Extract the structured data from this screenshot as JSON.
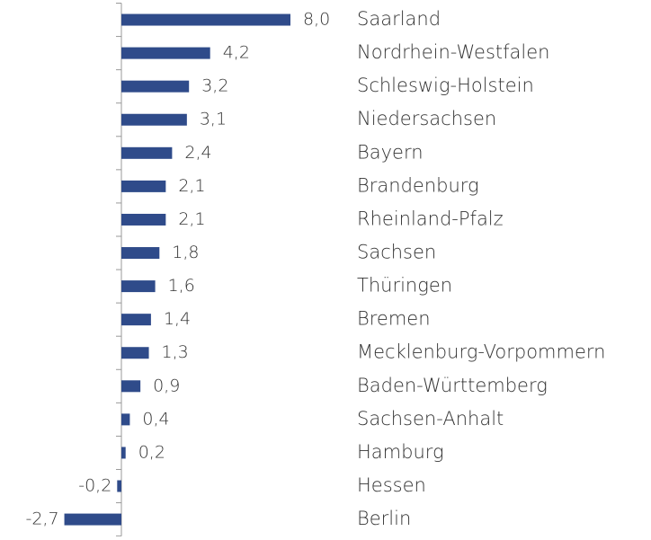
{
  "chart_data": {
    "type": "hbar",
    "categories": [
      "Saarland",
      "Nordrhein-Westfalen",
      "Schleswig-Holstein",
      "Niedersachsen",
      "Bayern",
      "Brandenburg",
      "Rheinland-Pfalz",
      "Sachsen",
      "Thüringen",
      "Bremen",
      "Mecklenburg-Vorpommern",
      "Baden-Württemberg",
      "Sachsen-Anhalt",
      "Hamburg",
      "Hessen",
      "Berlin"
    ],
    "values": [
      8.0,
      4.2,
      3.2,
      3.1,
      2.4,
      2.1,
      2.1,
      1.8,
      1.6,
      1.4,
      1.3,
      0.9,
      0.4,
      0.2,
      -0.2,
      -2.7
    ],
    "value_labels": [
      "8,0",
      "4,2",
      "3,2",
      "3,1",
      "2,4",
      "2,1",
      "2,1",
      "1,8",
      "1,6",
      "1,4",
      "1,3",
      "0,9",
      "0,4",
      "0,2",
      "-0,2",
      "-2,7"
    ],
    "color": "#2f4b8a",
    "xlim": [
      -3,
      8.5
    ]
  }
}
